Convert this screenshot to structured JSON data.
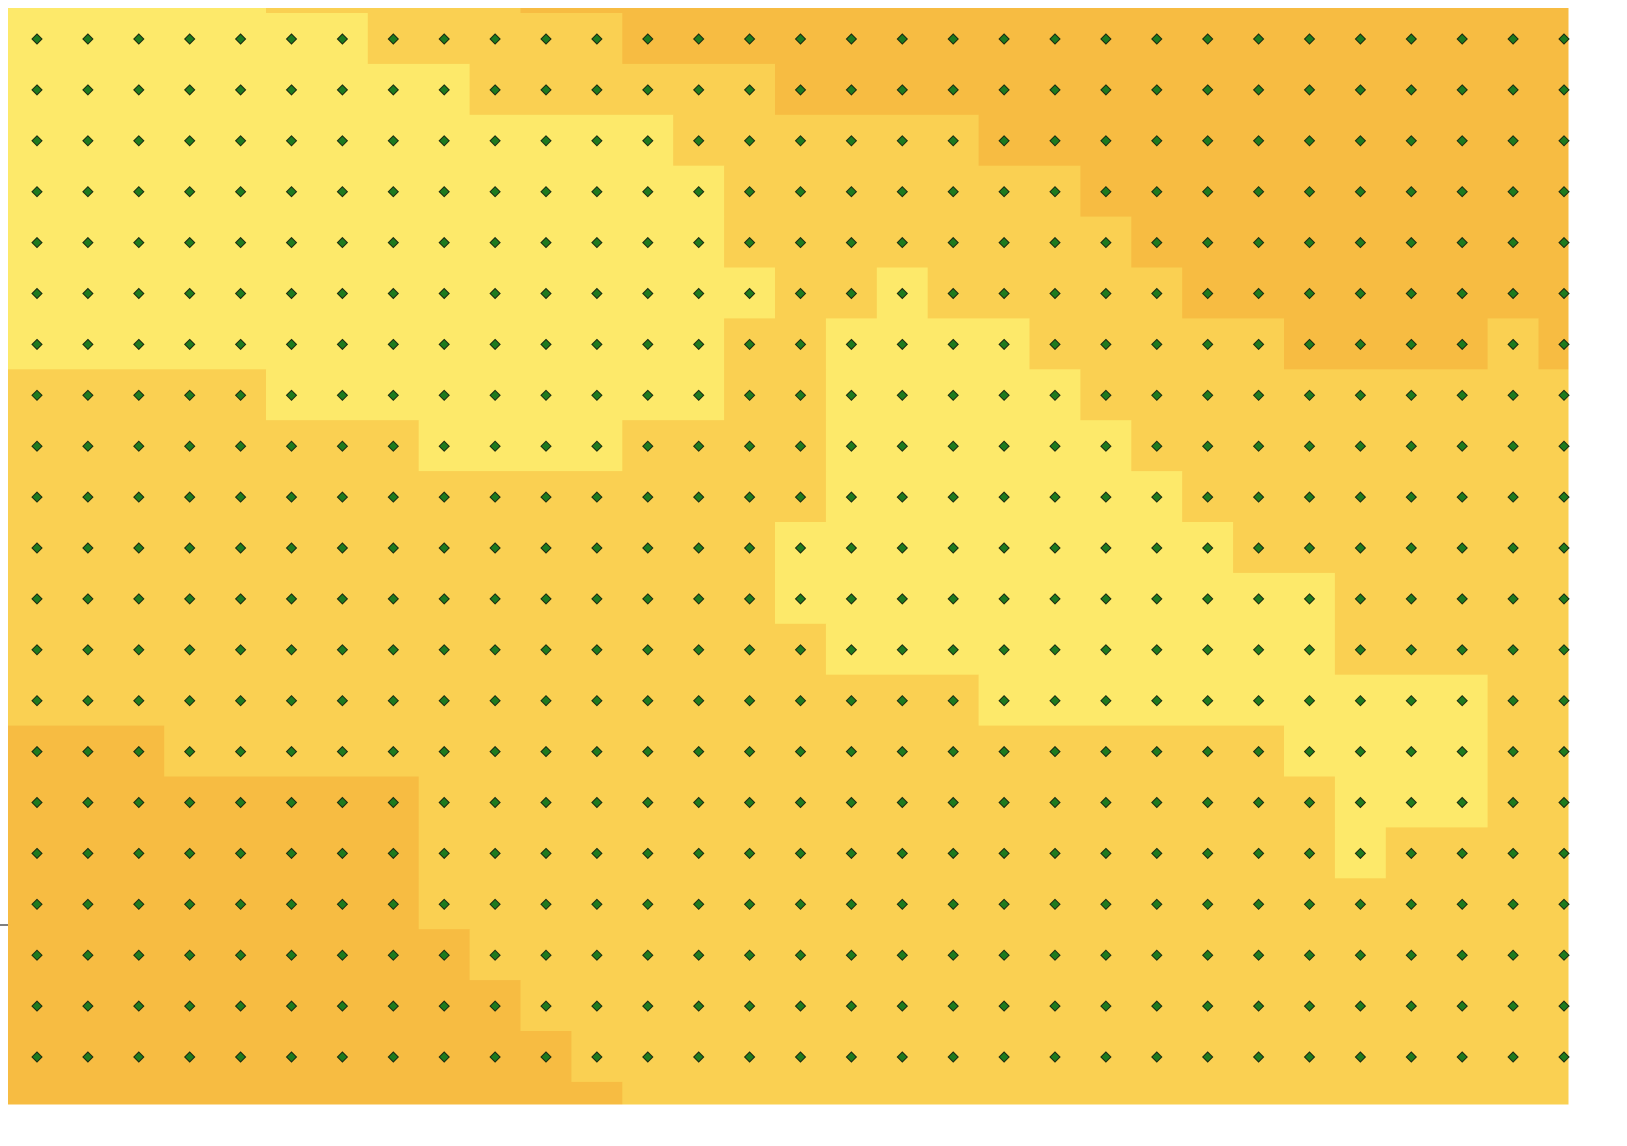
{
  "raster": {
    "palette": [
      "#fde96a",
      "#fad052",
      "#f7bc42"
    ],
    "point_color": "#1e7a1e",
    "rows": [
      [
        [
          0,
          5
        ],
        [
          1,
          5
        ],
        [
          2,
          21
        ]
      ],
      [
        [
          0,
          7
        ],
        [
          1,
          5
        ],
        [
          2,
          19
        ]
      ],
      [
        [
          0,
          9
        ],
        [
          1,
          6
        ],
        [
          2,
          16
        ]
      ],
      [
        [
          0,
          13
        ],
        [
          1,
          6
        ],
        [
          2,
          12
        ]
      ],
      [
        [
          0,
          14
        ],
        [
          1,
          7
        ],
        [
          2,
          10
        ]
      ],
      [
        [
          0,
          14
        ],
        [
          1,
          8
        ],
        [
          2,
          9
        ]
      ],
      [
        [
          0,
          15
        ],
        [
          1,
          2
        ],
        [
          0,
          1
        ],
        [
          1,
          5
        ],
        [
          2,
          8
        ]
      ],
      [
        [
          0,
          14
        ],
        [
          1,
          2
        ],
        [
          0,
          4
        ],
        [
          1,
          5
        ],
        [
          2,
          4
        ],
        [
          1,
          1
        ],
        [
          2,
          1
        ]
      ],
      [
        [
          1,
          5
        ],
        [
          0,
          9
        ],
        [
          1,
          2
        ],
        [
          0,
          5
        ],
        [
          1,
          10
        ]
      ],
      [
        [
          1,
          8
        ],
        [
          0,
          4
        ],
        [
          1,
          4
        ],
        [
          0,
          6
        ],
        [
          1,
          9
        ]
      ],
      [
        [
          1,
          16
        ],
        [
          0,
          7
        ],
        [
          1,
          8
        ]
      ],
      [
        [
          1,
          15
        ],
        [
          0,
          9
        ],
        [
          1,
          7
        ]
      ],
      [
        [
          1,
          15
        ],
        [
          0,
          11
        ],
        [
          1,
          5
        ]
      ],
      [
        [
          1,
          16
        ],
        [
          0,
          10
        ],
        [
          1,
          5
        ]
      ],
      [
        [
          1,
          19
        ],
        [
          0,
          10
        ],
        [
          1,
          2
        ]
      ],
      [
        [
          2,
          3
        ],
        [
          1,
          22
        ],
        [
          0,
          4
        ],
        [
          1,
          2
        ]
      ],
      [
        [
          2,
          8
        ],
        [
          1,
          18
        ],
        [
          0,
          3
        ],
        [
          1,
          2
        ]
      ],
      [
        [
          2,
          8
        ],
        [
          1,
          18
        ],
        [
          0,
          1
        ],
        [
          1,
          4
        ]
      ],
      [
        [
          2,
          8
        ],
        [
          1,
          23
        ]
      ],
      [
        [
          2,
          9
        ],
        [
          1,
          22
        ]
      ],
      [
        [
          2,
          10
        ],
        [
          1,
          21
        ]
      ],
      [
        [
          2,
          11
        ],
        [
          1,
          20
        ]
      ],
      [
        [
          2,
          12
        ],
        [
          1,
          19
        ]
      ]
    ]
  }
}
